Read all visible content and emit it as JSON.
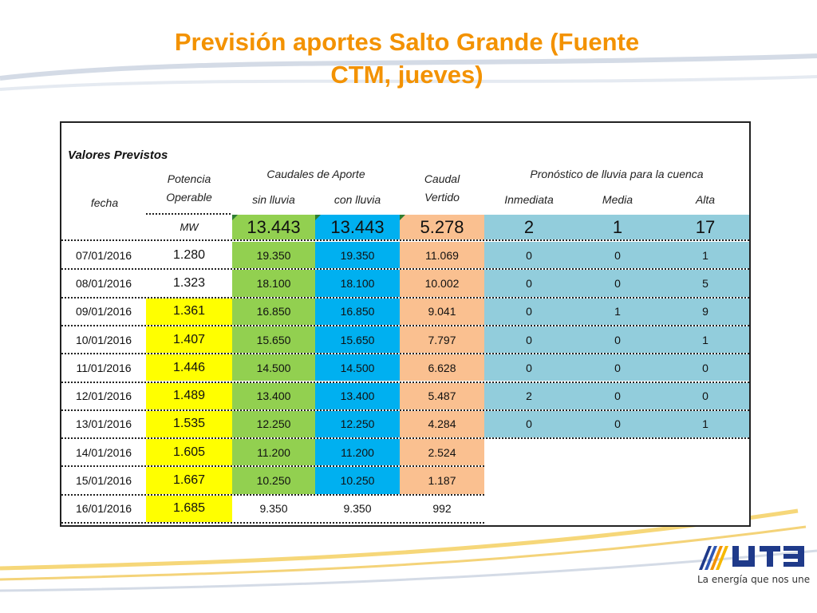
{
  "slide": {
    "title_line1": "Previsión aportes Salto Grande (Fuente",
    "title_line2": "CTM, jueves)",
    "slogan": "La energía que nos une",
    "logo_icon": "ute-logo-icon"
  },
  "table": {
    "section_label": "Valores Previstos",
    "headers": {
      "fecha": "fecha",
      "potencia_line1": "Potencia",
      "potencia_line2": "Operable",
      "caudales": "Caudales de Aporte",
      "sin_lluvia": "sin lluvia",
      "con_lluvia": "con lluvia",
      "caudal_line1": "Caudal",
      "caudal_line2": "Vertido",
      "pronostico": "Pronóstico de lluvia para la cuenca",
      "inmediata": "Inmediata",
      "media": "Media",
      "alta": "Alta",
      "unit": "MW"
    },
    "summary": {
      "sin_lluvia": "13.443",
      "con_lluvia": "13.443",
      "vertido": "5.278",
      "inmediata": "2",
      "media": "1",
      "alta": "17"
    },
    "rows": [
      {
        "fecha": "07/01/2016",
        "potencia": "1.280",
        "sin": "19.350",
        "con": "19.350",
        "vertido": "11.069",
        "inm": "0",
        "med": "0",
        "alta": "1"
      },
      {
        "fecha": "08/01/2016",
        "potencia": "1.323",
        "sin": "18.100",
        "con": "18.100",
        "vertido": "10.002",
        "inm": "0",
        "med": "0",
        "alta": "5"
      },
      {
        "fecha": "09/01/2016",
        "potencia": "1.361",
        "sin": "16.850",
        "con": "16.850",
        "vertido": "9.041",
        "inm": "0",
        "med": "1",
        "alta": "9"
      },
      {
        "fecha": "10/01/2016",
        "potencia": "1.407",
        "sin": "15.650",
        "con": "15.650",
        "vertido": "7.797",
        "inm": "0",
        "med": "0",
        "alta": "1"
      },
      {
        "fecha": "11/01/2016",
        "potencia": "1.446",
        "sin": "14.500",
        "con": "14.500",
        "vertido": "6.628",
        "inm": "0",
        "med": "0",
        "alta": "0"
      },
      {
        "fecha": "12/01/2016",
        "potencia": "1.489",
        "sin": "13.400",
        "con": "13.400",
        "vertido": "5.487",
        "inm": "2",
        "med": "0",
        "alta": "0"
      },
      {
        "fecha": "13/01/2016",
        "potencia": "1.535",
        "sin": "12.250",
        "con": "12.250",
        "vertido": "4.284",
        "inm": "0",
        "med": "0",
        "alta": "1"
      },
      {
        "fecha": "14/01/2016",
        "potencia": "1.605",
        "sin": "11.200",
        "con": "11.200",
        "vertido": "2.524"
      },
      {
        "fecha": "15/01/2016",
        "potencia": "1.667",
        "sin": "10.250",
        "con": "10.250",
        "vertido": "1.187"
      },
      {
        "fecha": "16/01/2016",
        "potencia": "1.685",
        "sin": "9.350",
        "con": "9.350",
        "vertido": "992"
      }
    ]
  },
  "colors": {
    "title": "#f39200",
    "green": "#92d050",
    "blue": "#00b0f0",
    "orange": "#fac090",
    "yellow": "#ffff00",
    "teal": "#92cddc"
  }
}
